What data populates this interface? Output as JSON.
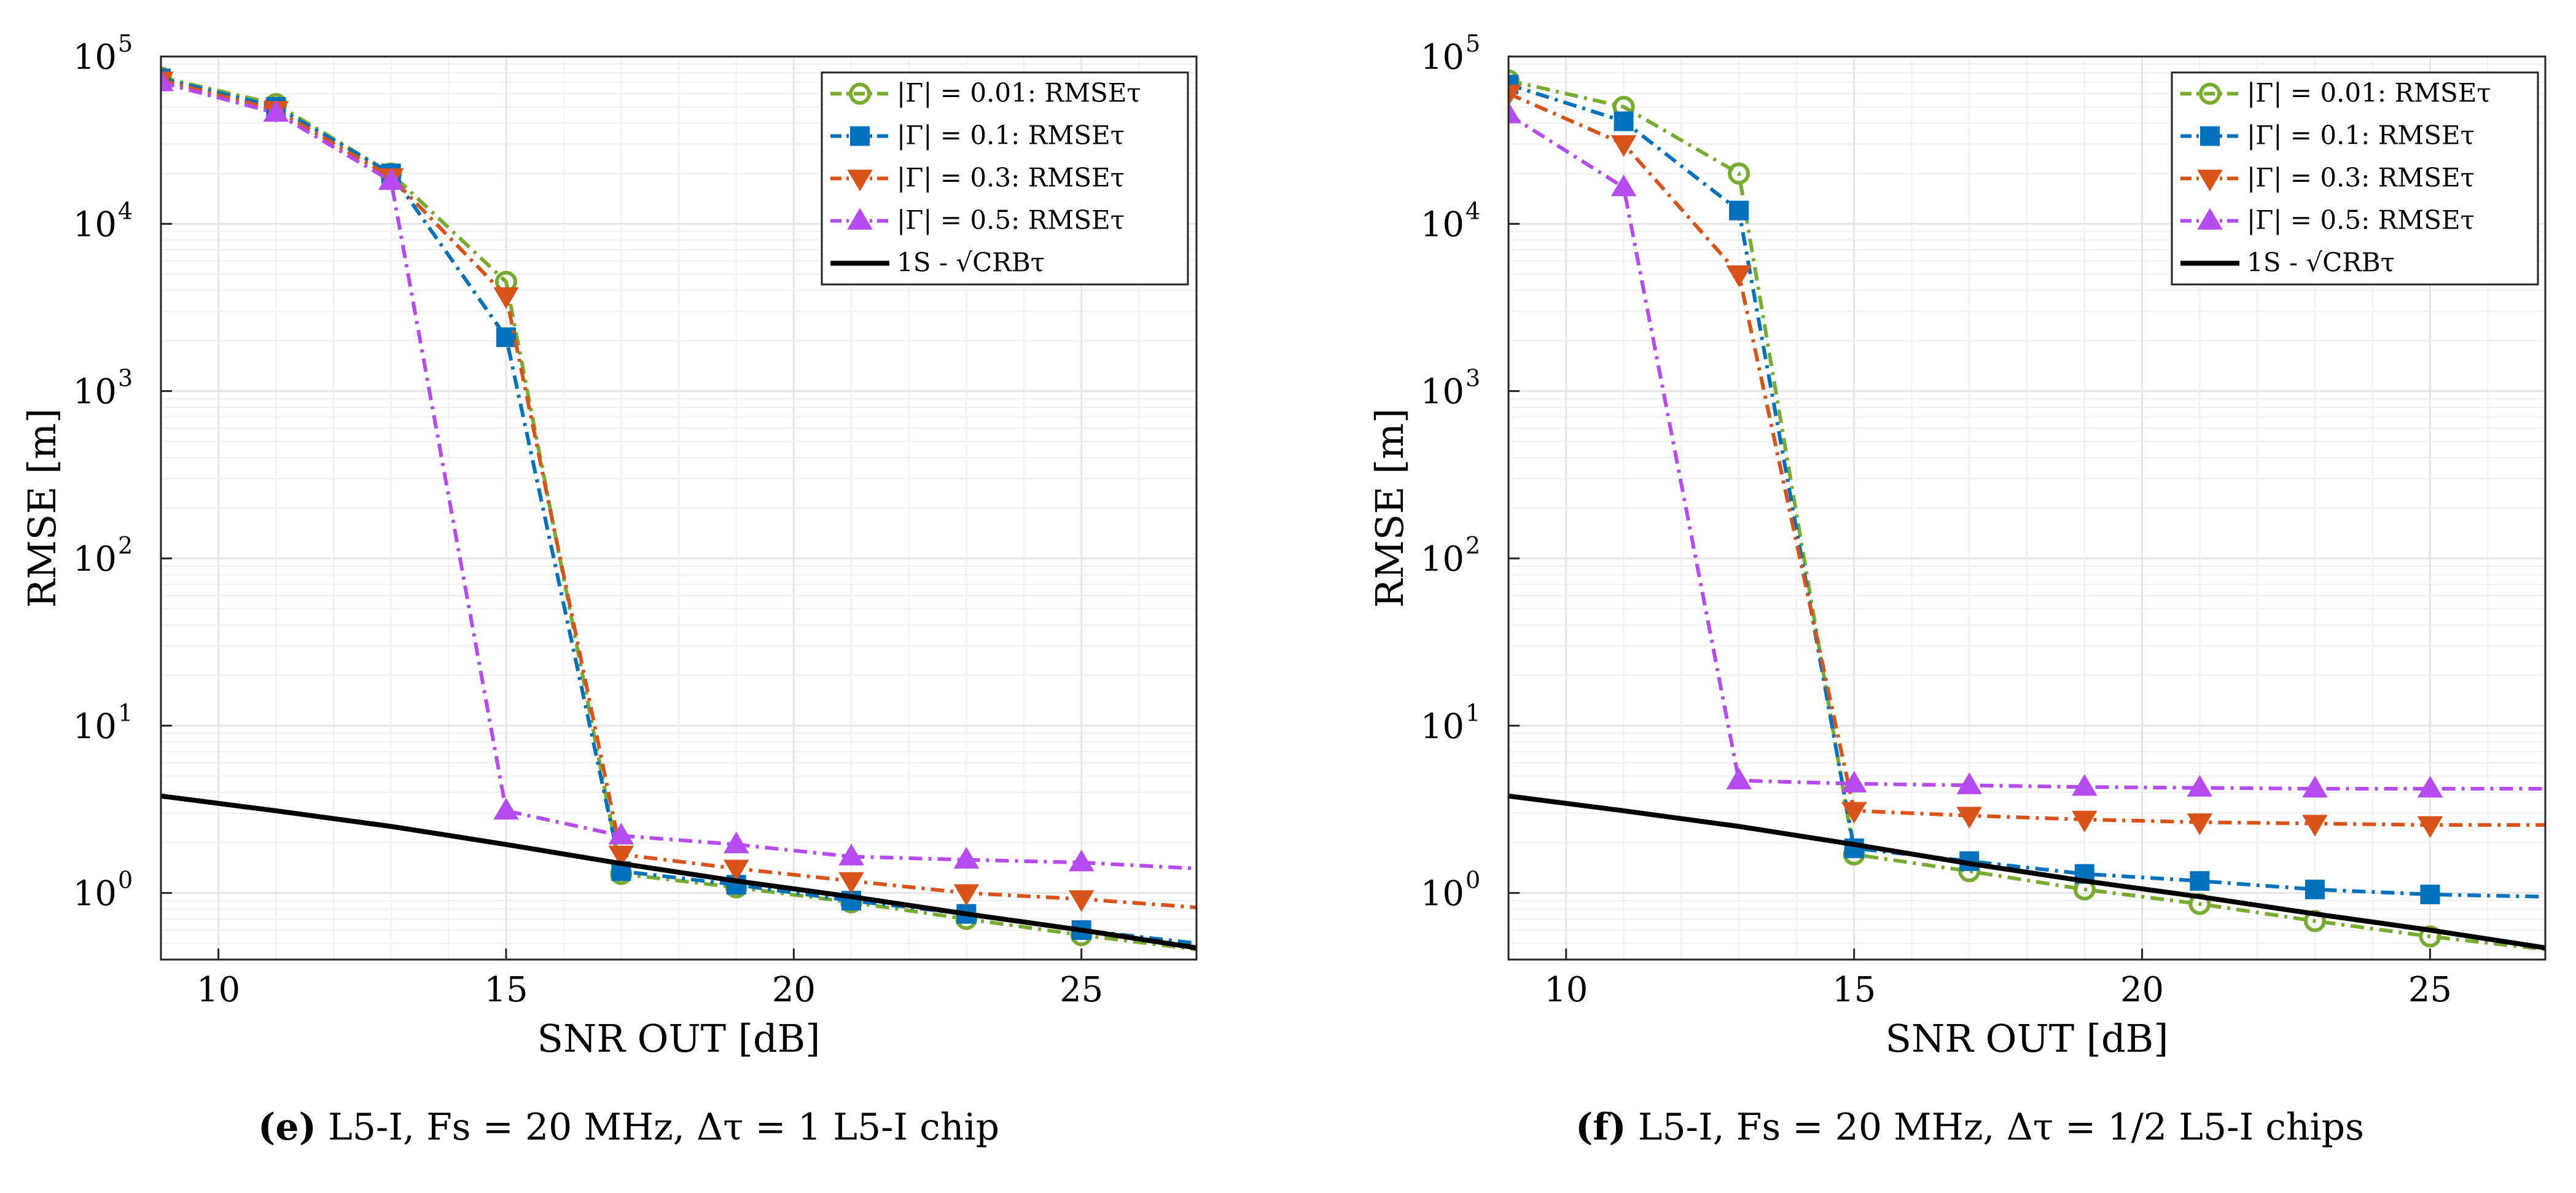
{
  "colors": {
    "g001": "#77ac30",
    "g01": "#0072bd",
    "g03": "#d95319",
    "g05": "#b54bf0",
    "crb": "#000000",
    "grid": "#e6e6e6",
    "axis": "#262626"
  },
  "chart_data": [
    {
      "type": "line",
      "id": "e",
      "title": "",
      "xlabel": "SNR OUT [dB]",
      "ylabel": "RMSE [m]",
      "xscale": "linear",
      "yscale": "log",
      "xlim": [
        9,
        27
      ],
      "ylim": [
        0.4,
        100000
      ],
      "xticks": [
        10,
        15,
        20,
        25
      ],
      "xtick_labels": [
        "10",
        "15",
        "20",
        "25"
      ],
      "yticks": [
        1,
        10,
        100,
        1000,
        10000,
        100000
      ],
      "ytick_labels": [
        {
          "base": "10",
          "exp": "0"
        },
        {
          "base": "10",
          "exp": "1"
        },
        {
          "base": "10",
          "exp": "2"
        },
        {
          "base": "10",
          "exp": "3"
        },
        {
          "base": "10",
          "exp": "4"
        },
        {
          "base": "10",
          "exp": "5"
        }
      ],
      "grid": true,
      "legend_position": "top-right",
      "caption": {
        "letter": "(e)",
        "text": " L5-I, Fs = 20 MHz, Δτ = 1 L5-I chip"
      },
      "x": [
        9,
        11,
        13,
        15,
        17,
        19,
        21,
        23,
        25,
        27
      ],
      "series": [
        {
          "name": "|Γ| = 0.01: RMSEτ",
          "color_key": "g001",
          "marker": "circle",
          "dash": "dashdot",
          "values": [
            75000,
            52000,
            20000,
            4500,
            1.3,
            1.08,
            0.88,
            0.7,
            0.56,
            0.46
          ]
        },
        {
          "name": "|Γ| = 0.1: RMSEτ",
          "color_key": "g01",
          "marker": "square",
          "dash": "dashdot",
          "values": [
            74000,
            50000,
            20000,
            2100,
            1.35,
            1.12,
            0.9,
            0.75,
            0.6,
            0.5
          ]
        },
        {
          "name": "|Γ| = 0.3: RMSEτ",
          "color_key": "g03",
          "marker": "triangle-down",
          "dash": "dashdot",
          "values": [
            72000,
            48000,
            19000,
            3700,
            1.7,
            1.4,
            1.18,
            1.0,
            0.92,
            0.82
          ]
        },
        {
          "name": "|Γ| = 0.5: RMSEτ",
          "color_key": "g05",
          "marker": "triangle-up",
          "dash": "dashdot",
          "values": [
            70000,
            46000,
            18000,
            3.1,
            2.2,
            1.95,
            1.65,
            1.58,
            1.52,
            1.4
          ]
        },
        {
          "name": "1S - √CRBτ",
          "color_key": "crb",
          "marker": "none",
          "dash": "solid",
          "values": [
            3.8,
            3.1,
            2.5,
            1.95,
            1.5,
            1.18,
            0.95,
            0.75,
            0.6,
            0.47
          ]
        }
      ]
    },
    {
      "type": "line",
      "id": "f",
      "title": "",
      "xlabel": "SNR OUT [dB]",
      "ylabel": "RMSE [m]",
      "xscale": "linear",
      "yscale": "log",
      "xlim": [
        9,
        27
      ],
      "ylim": [
        0.4,
        100000
      ],
      "xticks": [
        10,
        15,
        20,
        25
      ],
      "xtick_labels": [
        "10",
        "15",
        "20",
        "25"
      ],
      "yticks": [
        1,
        10,
        100,
        1000,
        10000,
        100000
      ],
      "ytick_labels": [
        {
          "base": "10",
          "exp": "0"
        },
        {
          "base": "10",
          "exp": "1"
        },
        {
          "base": "10",
          "exp": "2"
        },
        {
          "base": "10",
          "exp": "3"
        },
        {
          "base": "10",
          "exp": "4"
        },
        {
          "base": "10",
          "exp": "5"
        }
      ],
      "grid": true,
      "legend_position": "top-right",
      "caption": {
        "letter": "(f)",
        "text": " L5-I, Fs = 20 MHz, Δτ = 1/2 L5-I chips"
      },
      "x": [
        9,
        11,
        13,
        15,
        17,
        19,
        21,
        23,
        25,
        27
      ],
      "series": [
        {
          "name": "|Γ| = 0.01: RMSEτ",
          "color_key": "g001",
          "marker": "circle",
          "dash": "dashdot",
          "values": [
            72000,
            50000,
            20000,
            1.7,
            1.35,
            1.05,
            0.86,
            0.68,
            0.55,
            0.46
          ]
        },
        {
          "name": "|Γ| = 0.1: RMSEτ",
          "color_key": "g01",
          "marker": "square",
          "dash": "dashdot",
          "values": [
            68000,
            41000,
            12000,
            1.85,
            1.55,
            1.3,
            1.18,
            1.05,
            0.98,
            0.95
          ]
        },
        {
          "name": "|Γ| = 0.3: RMSEτ",
          "color_key": "g03",
          "marker": "triangle-down",
          "dash": "dashdot",
          "values": [
            60000,
            30000,
            5000,
            3.1,
            2.9,
            2.75,
            2.65,
            2.6,
            2.55,
            2.55
          ]
        },
        {
          "name": "|Γ| = 0.5: RMSEτ",
          "color_key": "g05",
          "marker": "triangle-up",
          "dash": "dashdot",
          "values": [
            45000,
            16500,
            4.7,
            4.5,
            4.4,
            4.3,
            4.25,
            4.2,
            4.2,
            4.2
          ]
        },
        {
          "name": "1S - √CRBτ",
          "color_key": "crb",
          "marker": "none",
          "dash": "solid",
          "values": [
            3.8,
            3.1,
            2.5,
            1.95,
            1.5,
            1.18,
            0.95,
            0.75,
            0.6,
            0.47
          ]
        }
      ]
    }
  ]
}
